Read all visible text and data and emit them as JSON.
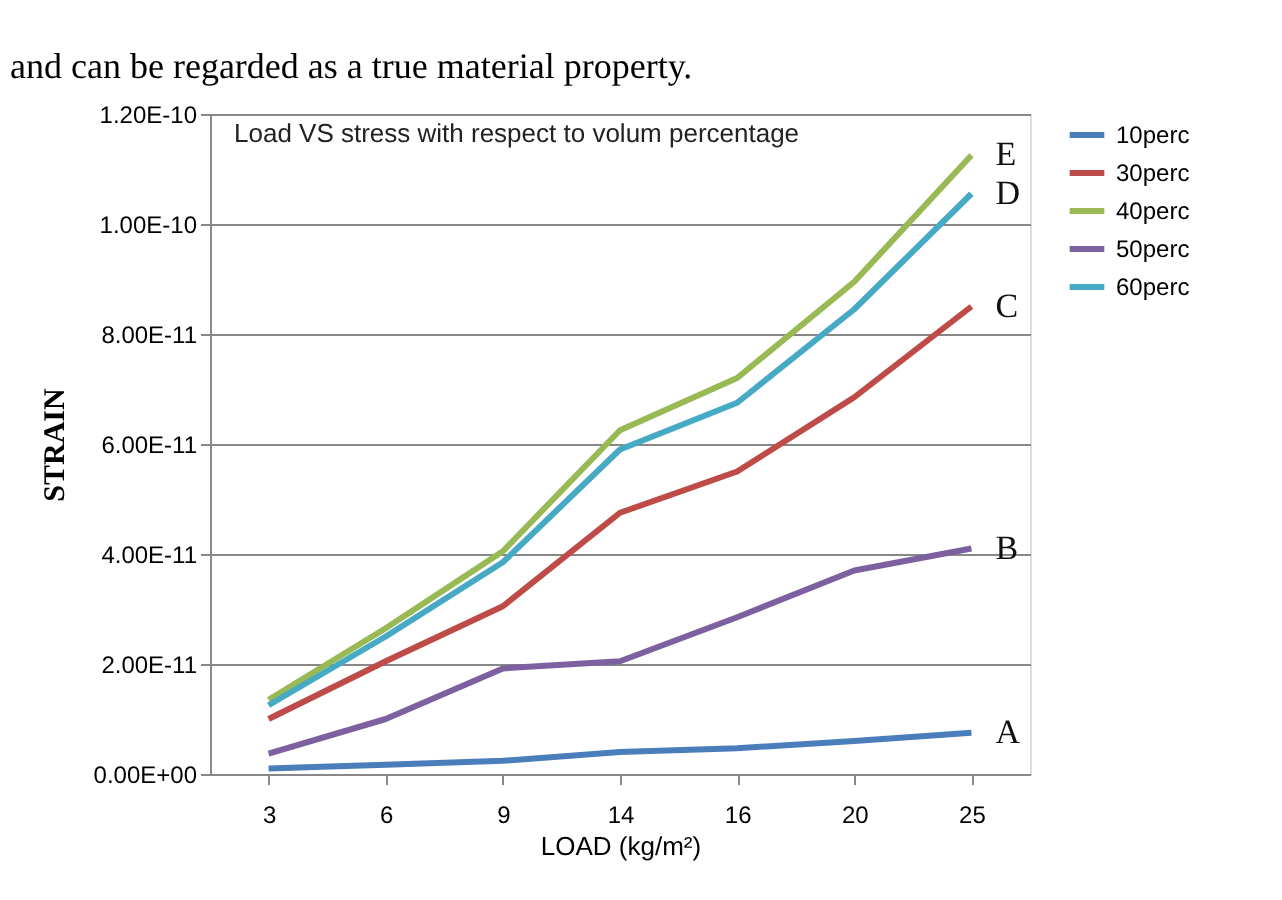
{
  "chart_data": {
    "type": "line",
    "title": "Load VS stress with respect to volum percentage",
    "xlabel": "LOAD (kg/m²)",
    "ylabel": "STRAIN",
    "categories": [
      "3",
      "6",
      "9",
      "14",
      "16",
      "20",
      "25"
    ],
    "series": [
      {
        "name": "10perc",
        "color": "#4a7ebb",
        "values": [
          1e-12,
          1.7e-12,
          2.4e-12,
          4e-12,
          4.7e-12,
          6e-12,
          7.5e-12
        ]
      },
      {
        "name": "30perc",
        "color": "#be4b48",
        "values": [
          1e-11,
          2.05e-11,
          3.05e-11,
          4.75e-11,
          5.5e-11,
          6.85e-11,
          8.5e-11
        ]
      },
      {
        "name": "40perc",
        "color": "#98b954",
        "values": [
          1.35e-11,
          2.65e-11,
          4.05e-11,
          6.25e-11,
          7.2e-11,
          8.95e-11,
          1.125e-10
        ]
      },
      {
        "name": "50perc",
        "color": "#7d60a0",
        "values": [
          3.7e-12,
          1e-11,
          1.92e-11,
          2.05e-11,
          2.85e-11,
          3.7e-11,
          4.1e-11
        ]
      },
      {
        "name": "60perc",
        "color": "#46aac5",
        "values": [
          1.25e-11,
          2.5e-11,
          3.85e-11,
          5.9e-11,
          6.75e-11,
          8.45e-11,
          1.055e-10
        ]
      }
    ],
    "ylim": [
      0,
      1.2e-10
    ],
    "yticks": [
      {
        "value": 0,
        "label": "0.00E+00"
      },
      {
        "value": 2e-11,
        "label": "2.00E-11"
      },
      {
        "value": 4e-11,
        "label": "4.00E-11"
      },
      {
        "value": 6e-11,
        "label": "6.00E-11"
      },
      {
        "value": 8e-11,
        "label": "8.00E-11"
      },
      {
        "value": 1e-10,
        "label": "1.00E-10"
      },
      {
        "value": 1.2e-10,
        "label": "1.20E-10"
      }
    ],
    "grid": "y",
    "legend": "right",
    "marker": "none",
    "line_style": "solid",
    "annotations": [
      "and can be regarded as a true material property.",
      {
        "text": "A",
        "x": "25",
        "y": 7.5e-12
      },
      {
        "text": "B",
        "x": "25",
        "y": 4.1e-11
      },
      {
        "text": "C",
        "x": "25",
        "y": 8.5e-11
      },
      {
        "text": "D",
        "x": "25",
        "y": 1.055e-10
      },
      {
        "text": "E",
        "x": "25",
        "y": 1.125e-10
      }
    ]
  }
}
